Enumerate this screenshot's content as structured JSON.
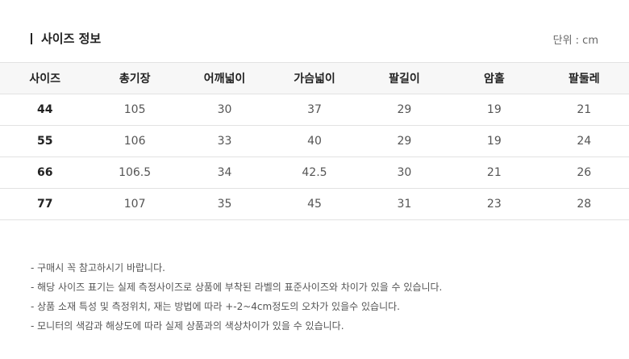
{
  "header": {
    "title": "사이즈 정보",
    "unit": "단위 : cm"
  },
  "table": {
    "columns": [
      "사이즈",
      "총기장",
      "어깨넓이",
      "가슴넓이",
      "팔길이",
      "암홀",
      "팔둘레"
    ],
    "rows": [
      [
        "44",
        "105",
        "30",
        "37",
        "29",
        "19",
        "21"
      ],
      [
        "55",
        "106",
        "33",
        "40",
        "29",
        "19",
        "24"
      ],
      [
        "66",
        "106.5",
        "34",
        "42.5",
        "30",
        "21",
        "26"
      ],
      [
        "77",
        "107",
        "35",
        "45",
        "31",
        "23",
        "28"
      ]
    ]
  },
  "notes": [
    "- 구매시 꼭 참고하시기 바랍니다.",
    "- 해당 사이즈 표기는 실제 측정사이즈로 상품에 부착된 라벨의 표준사이즈와 차이가 있을 수 있습니다.",
    "- 상품 소재 특성 및 측정위치, 재는 방법에 따라 +-2~4cm정도의 오차가 있을수 있습니다.",
    "- 모니터의 색감과 해상도에 따라 실제 상품과의 색상차이가 있을 수 있습니다."
  ]
}
